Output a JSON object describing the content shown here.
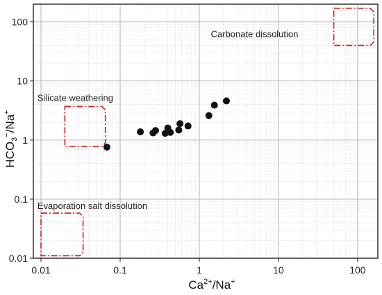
{
  "chart_data": {
    "type": "scatter",
    "title": "",
    "xlabel": {
      "base": "Ca",
      "sup": "2+",
      "tail": "/Na",
      "tail_sup": "+"
    },
    "ylabel": {
      "base": "HCO",
      "sub": "3",
      "sup": "−",
      "tail": "/Na",
      "tail_sup": "+"
    },
    "xscale": "log",
    "yscale": "log",
    "xlim": [
      0.008,
      180
    ],
    "ylim": [
      0.01,
      200
    ],
    "x_ticks": [
      0.01,
      0.1,
      1,
      10,
      100
    ],
    "x_tick_labels": [
      "0.01",
      "0.1",
      "1",
      "10",
      "100"
    ],
    "y_ticks": [
      0.01,
      0.1,
      1,
      10,
      100
    ],
    "y_tick_labels": [
      "0.01",
      "0.1",
      "1",
      "10",
      "100"
    ],
    "grid": true,
    "minor_grid": true,
    "marker_color": "#111111",
    "points": [
      {
        "x": 0.068,
        "y": 0.76
      },
      {
        "x": 0.18,
        "y": 1.38
      },
      {
        "x": 0.26,
        "y": 1.32
      },
      {
        "x": 0.28,
        "y": 1.45
      },
      {
        "x": 0.37,
        "y": 1.3
      },
      {
        "x": 0.4,
        "y": 1.6
      },
      {
        "x": 0.41,
        "y": 1.38
      },
      {
        "x": 0.43,
        "y": 1.35
      },
      {
        "x": 0.55,
        "y": 1.48
      },
      {
        "x": 0.57,
        "y": 1.9
      },
      {
        "x": 0.72,
        "y": 1.73
      },
      {
        "x": 1.32,
        "y": 2.6
      },
      {
        "x": 1.55,
        "y": 3.9
      },
      {
        "x": 2.2,
        "y": 4.6
      }
    ],
    "regions": [
      {
        "label": "Carbonate dissolution",
        "x": [
          50,
          160
        ],
        "y": [
          40,
          170
        ],
        "label_at": [
          1.4,
          55
        ],
        "color": "#d6191b"
      },
      {
        "label": "Silicate weathering",
        "x": [
          0.02,
          0.065
        ],
        "y": [
          0.78,
          3.7
        ],
        "label_at": [
          0.009,
          4.6
        ],
        "color": "#d6191b"
      },
      {
        "label": "Evaporation salt dissolution",
        "x": [
          0.01,
          0.034
        ],
        "y": [
          0.011,
          0.058
        ],
        "label_at": [
          0.009,
          0.068
        ],
        "color": "#d6191b"
      }
    ]
  }
}
